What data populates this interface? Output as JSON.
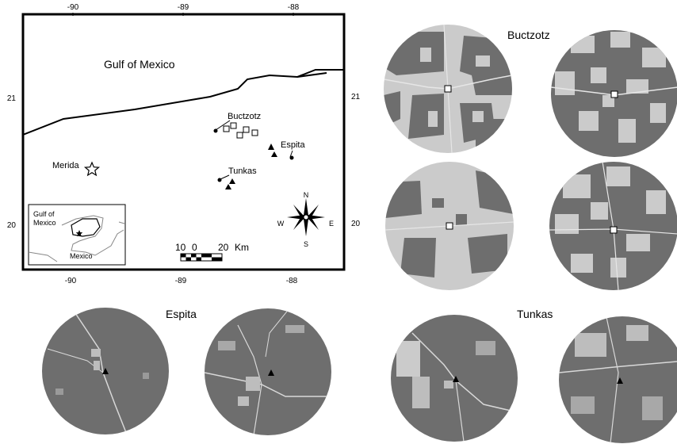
{
  "map": {
    "labels": {
      "gulf": "Gulf of Mexico",
      "buctzotz": "Buctzotz",
      "espita": "Espita",
      "tunkas": "Tunkas",
      "merida": "Merida"
    },
    "top_ticks": [
      "-90",
      "-89",
      "-88"
    ],
    "bottom_ticks": [
      "-90",
      "-89",
      "-88"
    ],
    "left_ticks": [
      "21",
      "20"
    ],
    "right_ticks": [
      "21",
      "20"
    ],
    "compass": {
      "n": "N",
      "s": "S",
      "e": "E",
      "w": "W"
    },
    "scalebar": {
      "left_label": "10",
      "mid_label": "0",
      "right_label": "20",
      "unit": "Km"
    },
    "inset": {
      "gulf_line1": "Gulf of",
      "gulf_line2": "Mexico",
      "country": "Mexico"
    }
  },
  "panels": {
    "buctzotz_title": "Buctzotz",
    "espita_title": "Espita",
    "tunkas_title": "Tunkas"
  },
  "colors": {
    "forest": "#6e6e6e",
    "cleared": "#cbcbcb",
    "road": "#e6e6e6",
    "frame": "#000000"
  }
}
